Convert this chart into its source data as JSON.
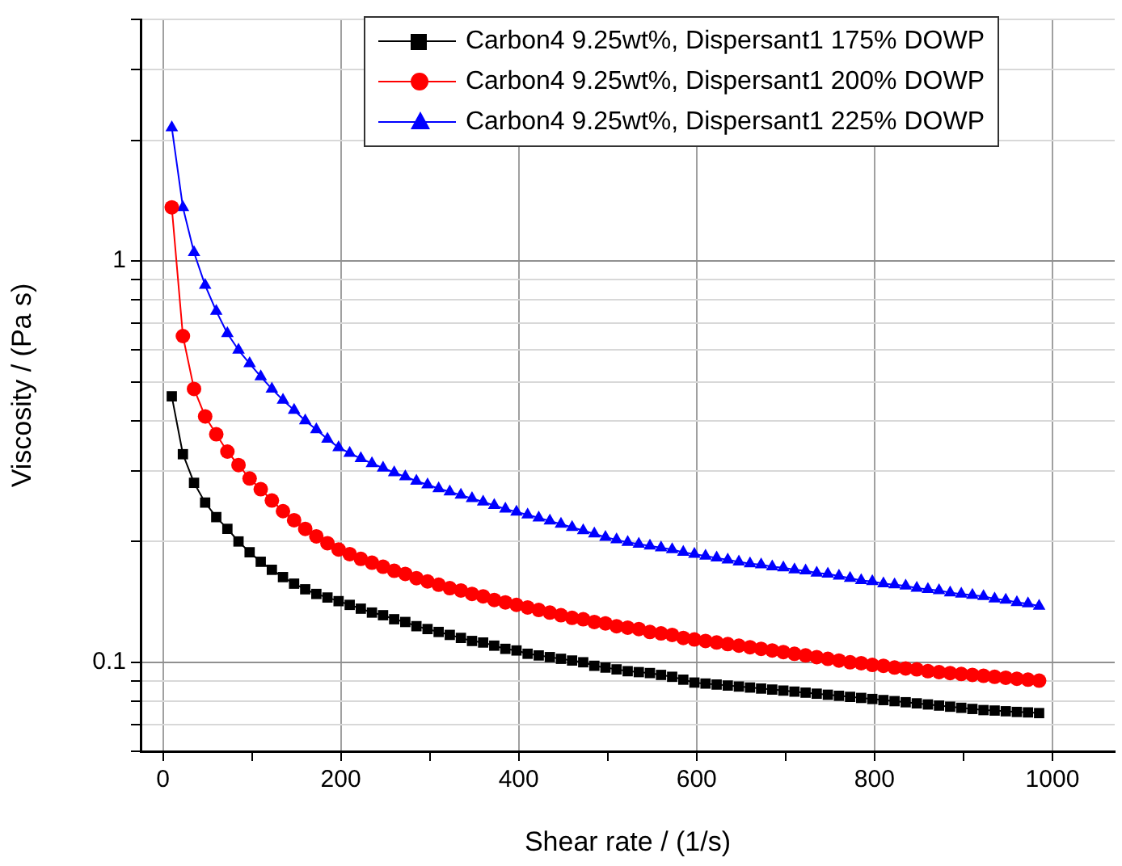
{
  "chart_data": {
    "type": "line",
    "xlabel": "Shear rate / (1/s)",
    "ylabel": "Viscosity / (Pa s)",
    "xlim": [
      -25,
      1070
    ],
    "ylim": [
      0.06,
      4
    ],
    "log": "y",
    "grid": true,
    "legend": "top right",
    "line_style": "solid",
    "xticks": [
      0,
      {
        "value": 100,
        "label": null
      },
      200,
      {
        "value": 300,
        "label": null
      },
      400,
      {
        "value": 500,
        "label": null
      },
      600,
      {
        "value": 700,
        "label": null
      },
      800,
      {
        "value": 900,
        "label": null
      },
      1000
    ],
    "yticks": [
      {
        "value": 0.06,
        "label": null
      },
      {
        "value": 0.07,
        "label": null
      },
      {
        "value": 0.08,
        "label": null
      },
      {
        "value": 0.09,
        "label": null
      },
      0.1,
      {
        "value": 0.2,
        "label": null
      },
      {
        "value": 0.3,
        "label": null
      },
      {
        "value": 0.4,
        "label": null
      },
      {
        "value": 0.5,
        "label": null
      },
      {
        "value": 0.6,
        "label": null
      },
      {
        "value": 0.7,
        "label": null
      },
      {
        "value": 0.8,
        "label": null
      },
      {
        "value": 0.9,
        "label": null
      },
      1,
      {
        "value": 2,
        "label": null
      },
      {
        "value": 3,
        "label": null
      },
      {
        "value": 4,
        "label": null
      }
    ],
    "x": [
      10,
      22.5,
      35,
      47.5,
      60,
      72.5,
      85,
      97.5,
      110,
      122.5,
      135,
      147.5,
      160,
      172.5,
      185,
      197.5,
      210,
      222.5,
      235,
      247.5,
      260,
      272.5,
      285,
      297.5,
      310,
      322.5,
      335,
      347.5,
      360,
      372.5,
      385,
      397.5,
      410,
      422.5,
      435,
      447.5,
      460,
      472.5,
      485,
      497.5,
      510,
      522.5,
      535,
      547.5,
      560,
      572.5,
      585,
      597.5,
      610,
      622.5,
      635,
      647.5,
      660,
      672.5,
      685,
      697.5,
      710,
      722.5,
      735,
      747.5,
      760,
      772.5,
      785,
      797.5,
      810,
      822.5,
      835,
      847.5,
      860,
      872.5,
      885,
      897.5,
      910,
      922.5,
      935,
      947.5,
      960,
      972.5,
      985
    ],
    "series": [
      {
        "name": "Carbon4 9.25wt%, Dispersant1 175% DOWP",
        "color": "#000000",
        "marker": "square",
        "values": [
          0.46,
          0.33,
          0.28,
          0.25,
          0.23,
          0.215,
          0.2,
          0.188,
          0.178,
          0.17,
          0.163,
          0.157,
          0.152,
          0.148,
          0.145,
          0.142,
          0.139,
          0.136,
          0.133,
          0.131,
          0.128,
          0.126,
          0.123,
          0.121,
          0.119,
          0.117,
          0.115,
          0.113,
          0.112,
          0.11,
          0.108,
          0.107,
          0.105,
          0.104,
          0.103,
          0.102,
          0.101,
          0.1,
          0.098,
          0.097,
          0.096,
          0.095,
          0.0945,
          0.094,
          0.093,
          0.092,
          0.0905,
          0.089,
          0.0885,
          0.088,
          0.0875,
          0.087,
          0.0865,
          0.086,
          0.0855,
          0.085,
          0.0845,
          0.084,
          0.0835,
          0.083,
          0.0825,
          0.082,
          0.0815,
          0.081,
          0.0805,
          0.08,
          0.0795,
          0.079,
          0.0785,
          0.078,
          0.0775,
          0.077,
          0.0765,
          0.076,
          0.0758,
          0.0755,
          0.0752,
          0.075,
          0.0747
        ]
      },
      {
        "name": "Carbon4 9.25wt%, Dispersant1 200% DOWP",
        "color": "#ff0000",
        "marker": "circle",
        "values": [
          1.36,
          0.65,
          0.48,
          0.41,
          0.37,
          0.335,
          0.31,
          0.287,
          0.27,
          0.253,
          0.238,
          0.226,
          0.215,
          0.206,
          0.198,
          0.191,
          0.186,
          0.181,
          0.177,
          0.173,
          0.169,
          0.166,
          0.162,
          0.159,
          0.156,
          0.153,
          0.151,
          0.148,
          0.146,
          0.143,
          0.141,
          0.139,
          0.137,
          0.135,
          0.133,
          0.131,
          0.129,
          0.128,
          0.126,
          0.125,
          0.123,
          0.122,
          0.121,
          0.119,
          0.118,
          0.117,
          0.115,
          0.114,
          0.113,
          0.112,
          0.111,
          0.11,
          0.109,
          0.108,
          0.107,
          0.106,
          0.105,
          0.104,
          0.103,
          0.102,
          0.101,
          0.1,
          0.0995,
          0.0985,
          0.098,
          0.097,
          0.0965,
          0.096,
          0.095,
          0.0945,
          0.094,
          0.0935,
          0.093,
          0.0925,
          0.092,
          0.0915,
          0.091,
          0.0905,
          0.09
        ]
      },
      {
        "name": "Carbon4 9.25wt%, Dispersant1 225% DOWP",
        "color": "#0000ff",
        "marker": "triangle",
        "values": [
          2.15,
          1.36,
          1.05,
          0.87,
          0.75,
          0.66,
          0.6,
          0.555,
          0.515,
          0.48,
          0.45,
          0.425,
          0.4,
          0.38,
          0.36,
          0.343,
          0.332,
          0.322,
          0.313,
          0.305,
          0.297,
          0.29,
          0.283,
          0.277,
          0.271,
          0.266,
          0.261,
          0.256,
          0.251,
          0.246,
          0.241,
          0.237,
          0.233,
          0.229,
          0.225,
          0.221,
          0.217,
          0.213,
          0.209,
          0.205,
          0.202,
          0.199,
          0.197,
          0.195,
          0.193,
          0.191,
          0.188,
          0.186,
          0.184,
          0.182,
          0.18,
          0.178,
          0.176,
          0.175,
          0.173,
          0.172,
          0.17,
          0.169,
          0.167,
          0.166,
          0.164,
          0.162,
          0.16,
          0.159,
          0.157,
          0.156,
          0.155,
          0.153,
          0.152,
          0.151,
          0.149,
          0.148,
          0.147,
          0.146,
          0.144,
          0.143,
          0.141,
          0.14,
          0.138
        ]
      }
    ]
  }
}
